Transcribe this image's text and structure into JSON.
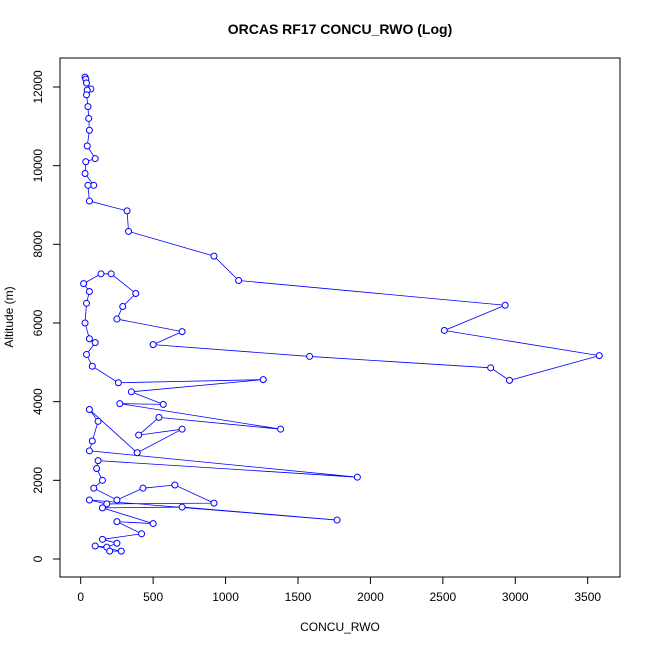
{
  "chart_data": {
    "type": "line",
    "title": "ORCAS RF17 CONCU_RWO (Log)",
    "x_label": "CONCU_RWO",
    "y_label": "Altitude (m)",
    "color": "#0000ff",
    "marker": "circle",
    "x": [
      30,
      35,
      40,
      70,
      45,
      40,
      50,
      55,
      60,
      45,
      100,
      35,
      30,
      90,
      50,
      60,
      320,
      330,
      920,
      1090,
      2930,
      2510,
      3580,
      2960,
      2830,
      1580,
      500,
      700,
      250,
      290,
      380,
      210,
      140,
      20,
      60,
      40,
      30,
      60,
      100,
      40,
      80,
      260,
      1260,
      350,
      570,
      270,
      1380,
      540,
      400,
      700,
      390,
      60,
      120,
      80,
      60,
      1910,
      120,
      110,
      150,
      90,
      250,
      430,
      650,
      920,
      180,
      60,
      1770,
      700,
      150,
      500,
      250,
      420,
      150,
      250,
      180,
      100,
      280,
      200
    ],
    "values": [
      12250,
      12200,
      12100,
      11950,
      11920,
      11800,
      11500,
      11200,
      10900,
      10500,
      10180,
      10100,
      9800,
      9500,
      9500,
      9100,
      8850,
      8330,
      7700,
      7080,
      6450,
      5810,
      5170,
      4540,
      4860,
      5150,
      5450,
      5780,
      6100,
      6420,
      6750,
      7250,
      7250,
      7000,
      6800,
      6500,
      6000,
      5600,
      5500,
      5200,
      4900,
      4480,
      4560,
      4250,
      3930,
      3950,
      3300,
      3600,
      3150,
      3300,
      2700,
      3800,
      3500,
      3000,
      2750,
      2080,
      2500,
      2300,
      2000,
      1800,
      1500,
      1800,
      1880,
      1420,
      1400,
      1500,
      990,
      1320,
      1300,
      900,
      950,
      640,
      500,
      400,
      300,
      330,
      200,
      200
    ],
    "xlim": [
      -143,
      3723
    ],
    "ylim": [
      -458,
      12737
    ],
    "xticks": [
      0,
      500,
      1000,
      1500,
      2000,
      2500,
      3000,
      3500
    ],
    "yticks": [
      0,
      2000,
      4000,
      6000,
      8000,
      10000,
      12000
    ],
    "grid": false
  }
}
